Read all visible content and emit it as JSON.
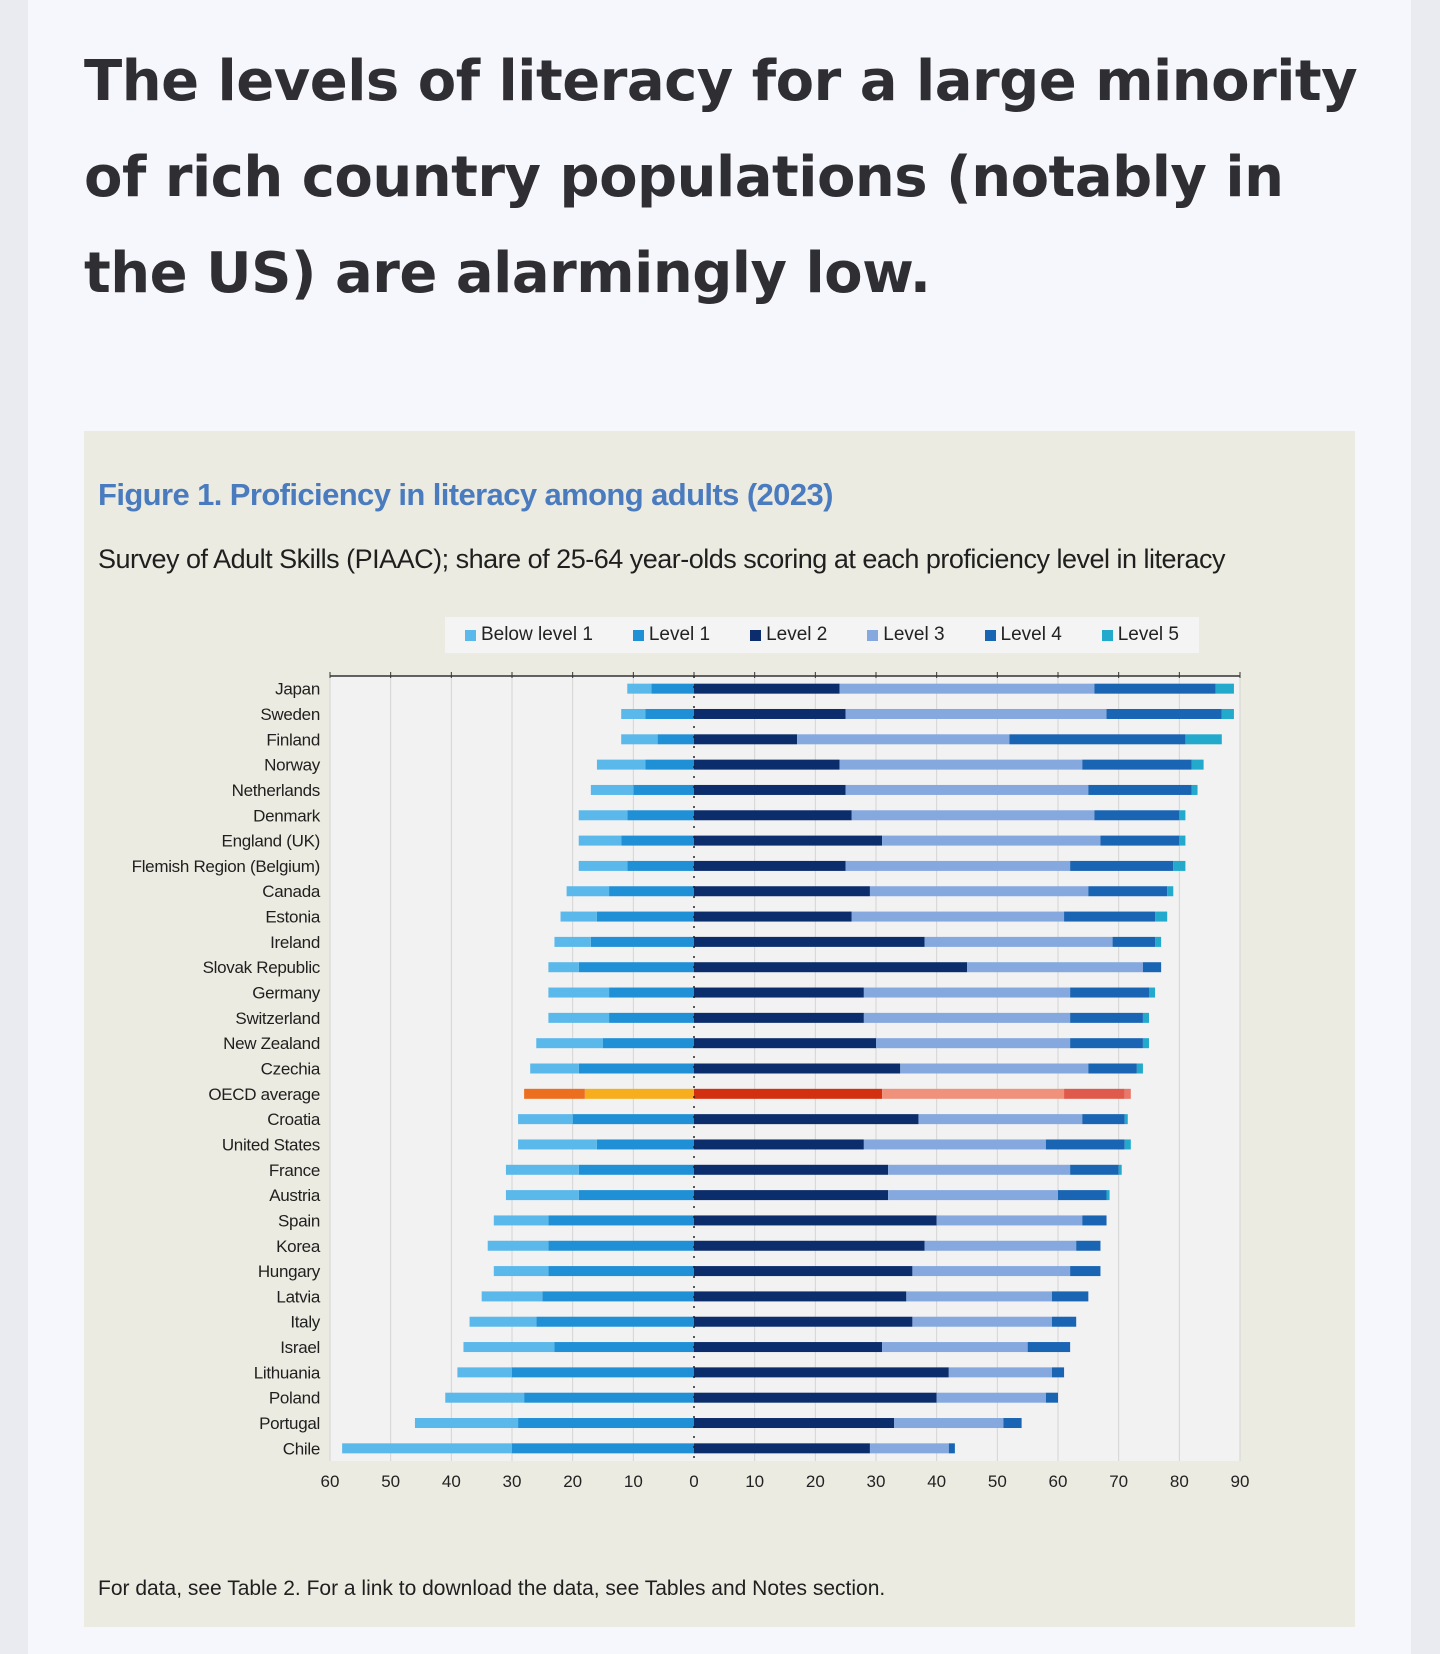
{
  "headline": "The levels of literacy for a large minority of rich country populations (notably in the US) are alarmingly low.",
  "figure": {
    "title": "Figure 1. Proficiency in literacy among adults (2023)",
    "subtitle": "Survey of Adult Skills (PIAAC); share of 25-64 year-olds scoring at each proficiency level in literacy",
    "note": "For data, see Table 2. For a link to download the data, see Tables and Notes section."
  },
  "colors": {
    "below_level_1": "#5bb8ea",
    "level_1": "#1f8fd6",
    "level_2": "#0c2d6b",
    "level_3": "#85a8de",
    "level_4": "#1a64b4",
    "level_5": "#22a9cc",
    "oecd_below_level_1": "#ec6e1f",
    "oecd_level_1": "#f6ad1e",
    "oecd_level_2": "#d3300f",
    "oecd_level_3": "#f0917c",
    "oecd_level_4": "#df5a4a",
    "oecd_level_5": "#e9786a",
    "plot_background": "#f2f2f2",
    "grid": "#d4d4d4"
  },
  "chart_data": {
    "type": "bar",
    "orientation": "horizontal-diverging",
    "title": "Figure 1. Proficiency in literacy among adults (2023)",
    "xlabel": "",
    "ylabel": "",
    "xlim": [
      -60,
      90
    ],
    "x_ticks": [
      -60,
      -50,
      -40,
      -30,
      -20,
      -10,
      0,
      10,
      20,
      30,
      40,
      50,
      60,
      70,
      80,
      90
    ],
    "x_tick_labels": [
      "60",
      "50",
      "40",
      "30",
      "20",
      "10",
      "0",
      "10",
      "20",
      "30",
      "40",
      "50",
      "60",
      "70",
      "80",
      "90"
    ],
    "legend_position": "top-center",
    "legend": [
      "Below level 1",
      "Level 1",
      "Level 2",
      "Level 3",
      "Level 4",
      "Level 5"
    ],
    "highlight_category": "OECD average",
    "categories": [
      "Japan",
      "Sweden",
      "Finland",
      "Norway",
      "Netherlands",
      "Denmark",
      "England (UK)",
      "Flemish Region (Belgium)",
      "Canada",
      "Estonia",
      "Ireland",
      "Slovak Republic",
      "Germany",
      "Switzerland",
      "New Zealand",
      "Czechia",
      "OECD average",
      "Croatia",
      "United States",
      "France",
      "Austria",
      "Spain",
      "Korea",
      "Hungary",
      "Latvia",
      "Italy",
      "Israel",
      "Lithuania",
      "Poland",
      "Portugal",
      "Chile"
    ],
    "series": [
      {
        "name": "Below level 1",
        "side": "left",
        "values": [
          4,
          4,
          6,
          8,
          7,
          8,
          7,
          8,
          7,
          6,
          6,
          5,
          10,
          10,
          11,
          8,
          10,
          9,
          13,
          12,
          12,
          9,
          10,
          9,
          10,
          11,
          15,
          9,
          13,
          17,
          28
        ]
      },
      {
        "name": "Level 1",
        "side": "left",
        "values": [
          7,
          8,
          6,
          8,
          10,
          11,
          12,
          11,
          14,
          16,
          17,
          19,
          14,
          14,
          15,
          19,
          18,
          20,
          16,
          19,
          19,
          24,
          24,
          24,
          25,
          26,
          23,
          30,
          28,
          29,
          30
        ]
      },
      {
        "name": "Level 2",
        "side": "right",
        "values": [
          24,
          25,
          17,
          24,
          25,
          26,
          31,
          25,
          29,
          26,
          38,
          45,
          28,
          28,
          30,
          34,
          31,
          37,
          28,
          32,
          32,
          40,
          38,
          36,
          35,
          36,
          31,
          42,
          40,
          33,
          29
        ]
      },
      {
        "name": "Level 3",
        "side": "right",
        "values": [
          42,
          43,
          35,
          40,
          40,
          40,
          36,
          37,
          36,
          35,
          31,
          29,
          34,
          34,
          32,
          31,
          30,
          27,
          30,
          30,
          28,
          24,
          25,
          26,
          24,
          23,
          24,
          17,
          18,
          18,
          13
        ]
      },
      {
        "name": "Level 4",
        "side": "right",
        "values": [
          20,
          19,
          29,
          18,
          17,
          14,
          13,
          17,
          13,
          15,
          7,
          3,
          13,
          12,
          12,
          8,
          10,
          7,
          13,
          8,
          8,
          4,
          4,
          5,
          6,
          4,
          7,
          2,
          2,
          3,
          1
        ]
      },
      {
        "name": "Level 5",
        "side": "right",
        "values": [
          3,
          2,
          6,
          2,
          1,
          1,
          1,
          2,
          1,
          2,
          1,
          0,
          1,
          1,
          1,
          1,
          1,
          0.5,
          1,
          0.5,
          0.5,
          0,
          0,
          0,
          0,
          0,
          0,
          0,
          0,
          0,
          0
        ]
      }
    ]
  }
}
